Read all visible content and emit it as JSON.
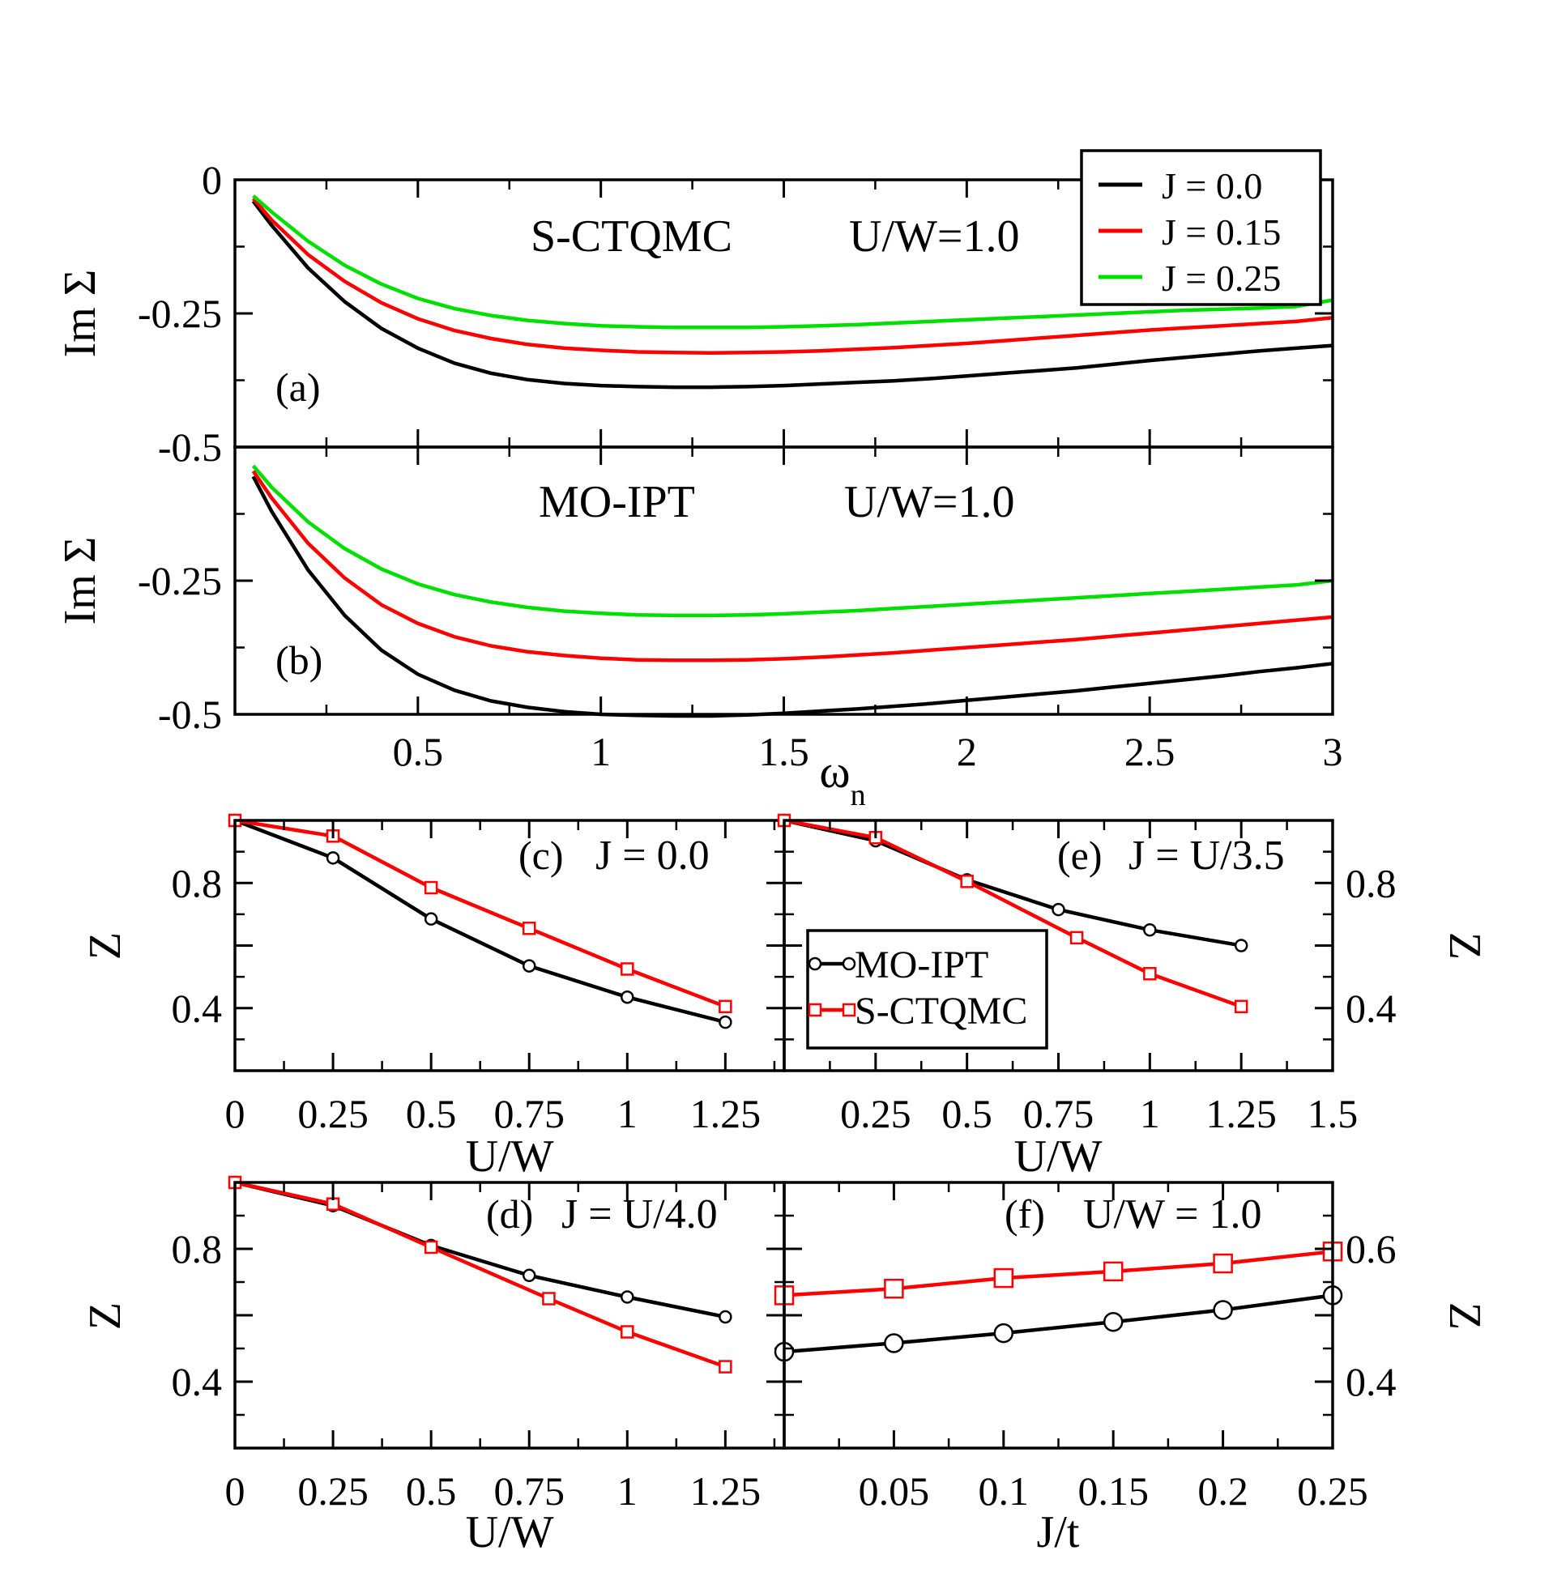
{
  "chart_data": [
    {
      "id": "a",
      "type": "line",
      "panel_label": "(a)",
      "annotations": [
        "S-CTQMC",
        "U/W=1.0"
      ],
      "ylabel": "Im Σ",
      "xlabel": "",
      "xlim": [
        0,
        3
      ],
      "ylim": [
        -0.5,
        0
      ],
      "x_ticks": [],
      "y_ticks": [
        "-0.5",
        "-0.25",
        "0"
      ],
      "legend": {
        "position": "top-right",
        "entries": [
          {
            "label": "J = 0.0",
            "color": "#000000"
          },
          {
            "label": "J = 0.15",
            "color": "#ff0000"
          },
          {
            "label": "J = 0.25",
            "color": "#00e000"
          }
        ]
      },
      "series": [
        {
          "name": "J = 0.0",
          "color": "#000000",
          "x": [
            0.05,
            0.1,
            0.2,
            0.3,
            0.4,
            0.5,
            0.6,
            0.7,
            0.8,
            0.9,
            1.0,
            1.1,
            1.2,
            1.3,
            1.4,
            1.5,
            1.6,
            1.7,
            1.8,
            1.9,
            2.0,
            2.1,
            2.2,
            2.3,
            2.4,
            2.5,
            2.6,
            2.7,
            2.8,
            2.9,
            3.0
          ],
          "y": [
            -0.04,
            -0.085,
            -0.165,
            -0.228,
            -0.278,
            -0.315,
            -0.343,
            -0.362,
            -0.374,
            -0.381,
            -0.385,
            -0.387,
            -0.388,
            -0.388,
            -0.387,
            -0.385,
            -0.382,
            -0.379,
            -0.376,
            -0.372,
            -0.367,
            -0.362,
            -0.357,
            -0.352,
            -0.345,
            -0.338,
            -0.332,
            -0.326,
            -0.32,
            -0.315,
            -0.31
          ]
        },
        {
          "name": "J = 0.15",
          "color": "#ff0000",
          "x": [
            0.05,
            0.1,
            0.2,
            0.3,
            0.4,
            0.5,
            0.6,
            0.7,
            0.8,
            0.9,
            1.0,
            1.1,
            1.2,
            1.3,
            1.4,
            1.5,
            1.6,
            1.7,
            1.8,
            1.9,
            2.0,
            2.1,
            2.2,
            2.3,
            2.4,
            2.5,
            2.6,
            2.7,
            2.8,
            2.9,
            3.0
          ],
          "y": [
            -0.035,
            -0.075,
            -0.14,
            -0.19,
            -0.23,
            -0.26,
            -0.282,
            -0.297,
            -0.308,
            -0.315,
            -0.319,
            -0.322,
            -0.323,
            -0.324,
            -0.323,
            -0.322,
            -0.32,
            -0.317,
            -0.314,
            -0.31,
            -0.306,
            -0.301,
            -0.296,
            -0.291,
            -0.286,
            -0.281,
            -0.277,
            -0.273,
            -0.269,
            -0.265,
            -0.258
          ]
        },
        {
          "name": "J = 0.25",
          "color": "#00e000",
          "x": [
            0.05,
            0.1,
            0.2,
            0.3,
            0.4,
            0.5,
            0.6,
            0.7,
            0.8,
            0.9,
            1.0,
            1.1,
            1.2,
            1.3,
            1.4,
            1.5,
            1.6,
            1.7,
            1.8,
            1.9,
            2.0,
            2.1,
            2.2,
            2.3,
            2.4,
            2.5,
            2.6,
            2.7,
            2.8,
            2.9,
            3.0
          ],
          "y": [
            -0.03,
            -0.06,
            -0.115,
            -0.16,
            -0.195,
            -0.222,
            -0.241,
            -0.254,
            -0.263,
            -0.269,
            -0.273,
            -0.275,
            -0.276,
            -0.276,
            -0.276,
            -0.275,
            -0.273,
            -0.271,
            -0.268,
            -0.265,
            -0.262,
            -0.259,
            -0.256,
            -0.253,
            -0.25,
            -0.247,
            -0.244,
            -0.242,
            -0.24,
            -0.237,
            -0.225
          ]
        }
      ]
    },
    {
      "id": "b",
      "type": "line",
      "panel_label": "(b)",
      "annotations": [
        "MO-IPT",
        "U/W=1.0"
      ],
      "ylabel": "Im Σ",
      "xlabel": "ωn",
      "xlim": [
        0,
        3
      ],
      "ylim": [
        -0.5,
        0
      ],
      "x_ticks": [
        "0.5",
        "1",
        "1.5",
        "2",
        "2.5",
        "3"
      ],
      "y_ticks": [
        "-0.5",
        "-0.25"
      ],
      "series": [
        {
          "name": "J = 0.0",
          "color": "#000000",
          "x": [
            0.05,
            0.1,
            0.2,
            0.3,
            0.4,
            0.5,
            0.6,
            0.7,
            0.8,
            0.9,
            1.0,
            1.1,
            1.2,
            1.3,
            1.4,
            1.5,
            1.6,
            1.7,
            1.8,
            1.9,
            2.0,
            2.1,
            2.2,
            2.3,
            2.4,
            2.5,
            2.6,
            2.7,
            2.8,
            2.9,
            3.0
          ],
          "y": [
            -0.055,
            -0.12,
            -0.23,
            -0.315,
            -0.38,
            -0.425,
            -0.455,
            -0.475,
            -0.487,
            -0.495,
            -0.5,
            -0.502,
            -0.503,
            -0.503,
            -0.501,
            -0.498,
            -0.494,
            -0.49,
            -0.485,
            -0.48,
            -0.474,
            -0.468,
            -0.462,
            -0.456,
            -0.449,
            -0.442,
            -0.435,
            -0.428,
            -0.42,
            -0.413,
            -0.405
          ]
        },
        {
          "name": "J = 0.15",
          "color": "#ff0000",
          "x": [
            0.05,
            0.1,
            0.2,
            0.3,
            0.4,
            0.5,
            0.6,
            0.7,
            0.8,
            0.9,
            1.0,
            1.1,
            1.2,
            1.3,
            1.4,
            1.5,
            1.6,
            1.7,
            1.8,
            1.9,
            2.0,
            2.1,
            2.2,
            2.3,
            2.4,
            2.5,
            2.6,
            2.7,
            2.8,
            2.9,
            3.0
          ],
          "y": [
            -0.045,
            -0.095,
            -0.18,
            -0.245,
            -0.295,
            -0.33,
            -0.355,
            -0.372,
            -0.383,
            -0.39,
            -0.395,
            -0.398,
            -0.399,
            -0.399,
            -0.398,
            -0.396,
            -0.393,
            -0.389,
            -0.385,
            -0.38,
            -0.375,
            -0.37,
            -0.365,
            -0.36,
            -0.354,
            -0.348,
            -0.342,
            -0.336,
            -0.33,
            -0.324,
            -0.318
          ]
        },
        {
          "name": "J = 0.25",
          "color": "#00e000",
          "x": [
            0.05,
            0.1,
            0.2,
            0.3,
            0.4,
            0.5,
            0.6,
            0.7,
            0.8,
            0.9,
            1.0,
            1.1,
            1.2,
            1.3,
            1.4,
            1.5,
            1.6,
            1.7,
            1.8,
            1.9,
            2.0,
            2.1,
            2.2,
            2.3,
            2.4,
            2.5,
            2.6,
            2.7,
            2.8,
            2.9,
            3.0
          ],
          "y": [
            -0.035,
            -0.075,
            -0.14,
            -0.19,
            -0.228,
            -0.256,
            -0.276,
            -0.29,
            -0.3,
            -0.307,
            -0.311,
            -0.314,
            -0.315,
            -0.315,
            -0.314,
            -0.312,
            -0.309,
            -0.306,
            -0.302,
            -0.298,
            -0.294,
            -0.29,
            -0.286,
            -0.282,
            -0.278,
            -0.274,
            -0.27,
            -0.266,
            -0.262,
            -0.258,
            -0.25
          ]
        }
      ]
    },
    {
      "id": "c",
      "type": "line",
      "panel_label": "(c)",
      "annotations": [
        "J = 0.0"
      ],
      "ylabel": "Z",
      "xlabel": "U/W",
      "xlim": [
        0,
        1.4
      ],
      "ylim": [
        0.2,
        1.0
      ],
      "x_ticks": [
        "0",
        "0.25",
        "0.5",
        "0.75",
        "1",
        "1.25"
      ],
      "y_ticks": [
        "0.4",
        "0.8"
      ],
      "series": [
        {
          "name": "MO-IPT",
          "color": "#000000",
          "marker": "circle",
          "x": [
            0,
            0.25,
            0.5,
            0.75,
            1.0,
            1.25
          ],
          "y": [
            1.0,
            0.88,
            0.685,
            0.535,
            0.435,
            0.355
          ]
        },
        {
          "name": "S-CTQMC",
          "color": "#ff0000",
          "marker": "square",
          "x": [
            0,
            0.25,
            0.5,
            0.75,
            1.0,
            1.25
          ],
          "y": [
            1.0,
            0.95,
            0.785,
            0.655,
            0.525,
            0.405
          ]
        }
      ]
    },
    {
      "id": "e",
      "type": "line",
      "panel_label": "(e)",
      "annotations": [
        "J = U/3.5"
      ],
      "ylabel": "Z",
      "xlabel": "U/W",
      "xlim": [
        0,
        1.5
      ],
      "ylim": [
        0.2,
        1.0
      ],
      "x_ticks": [
        "0.25",
        "0.5",
        "0.75",
        "1",
        "1.25",
        "1.5"
      ],
      "y_ticks": [
        "0.4",
        "0.8"
      ],
      "legend": {
        "position": "center-left",
        "entries": [
          {
            "label": "MO-IPT",
            "color": "#000000",
            "marker": "circle"
          },
          {
            "label": "S-CTQMC",
            "color": "#ff0000",
            "marker": "square"
          }
        ]
      },
      "series": [
        {
          "name": "MO-IPT",
          "color": "#000000",
          "marker": "circle",
          "x": [
            0,
            0.25,
            0.5,
            0.75,
            1.0,
            1.25
          ],
          "y": [
            1.0,
            0.935,
            0.81,
            0.715,
            0.65,
            0.6
          ]
        },
        {
          "name": "S-CTQMC",
          "color": "#ff0000",
          "marker": "square",
          "x": [
            0,
            0.25,
            0.5,
            0.8,
            1.0,
            1.25
          ],
          "y": [
            1.0,
            0.945,
            0.805,
            0.625,
            0.51,
            0.405
          ]
        }
      ]
    },
    {
      "id": "d",
      "type": "line",
      "panel_label": "(d)",
      "annotations": [
        "J = U/4.0"
      ],
      "ylabel": "Z",
      "xlabel": "U/W",
      "xlim": [
        0,
        1.4
      ],
      "ylim": [
        0.2,
        1.0
      ],
      "x_ticks": [
        "0",
        "0.25",
        "0.5",
        "0.75",
        "1",
        "1.25"
      ],
      "y_ticks": [
        "0.4",
        "0.8"
      ],
      "series": [
        {
          "name": "MO-IPT",
          "color": "#000000",
          "marker": "circle",
          "x": [
            0,
            0.25,
            0.5,
            0.75,
            1.0,
            1.25
          ],
          "y": [
            1.0,
            0.93,
            0.81,
            0.72,
            0.655,
            0.595
          ]
        },
        {
          "name": "S-CTQMC",
          "color": "#ff0000",
          "marker": "square",
          "x": [
            0,
            0.25,
            0.5,
            0.8,
            1.0,
            1.25
          ],
          "y": [
            1.0,
            0.935,
            0.805,
            0.65,
            0.55,
            0.445
          ]
        }
      ]
    },
    {
      "id": "f",
      "type": "line",
      "panel_label": "(f)",
      "annotations": [
        "U/W = 1.0"
      ],
      "ylabel": "Z",
      "xlabel": "J/t",
      "xlim": [
        0,
        0.25
      ],
      "ylim": [
        0.3,
        0.7
      ],
      "x_ticks": [
        "0.05",
        "0.1",
        "0.15",
        "0.2",
        "0.25"
      ],
      "y_ticks": [
        "0.4",
        "0.6"
      ],
      "series": [
        {
          "name": "MO-IPT",
          "color": "#000000",
          "marker": "circle",
          "x": [
            0,
            0.05,
            0.1,
            0.15,
            0.2,
            0.25
          ],
          "y": [
            0.445,
            0.458,
            0.473,
            0.49,
            0.508,
            0.53
          ]
        },
        {
          "name": "S-CTQMC",
          "color": "#ff0000",
          "marker": "square",
          "x": [
            0,
            0.05,
            0.1,
            0.15,
            0.2,
            0.25
          ],
          "y": [
            0.53,
            0.54,
            0.556,
            0.566,
            0.578,
            0.596
          ]
        }
      ]
    }
  ]
}
